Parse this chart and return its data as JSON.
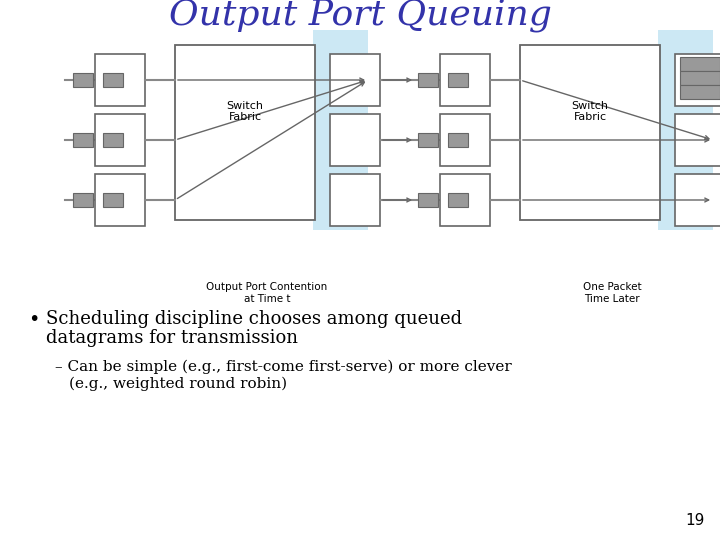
{
  "title": "Output Port Queuing",
  "title_color": "#3333aa",
  "title_fontsize": 26,
  "bg_color": "#ffffff",
  "bullet1_line1": "Scheduling discipline chooses among queued",
  "bullet1_line2": "datagrams for transmission",
  "sub_bullet_line1": "Can be simple (e.g., first-come first-serve) or more clever",
  "sub_bullet_line2": "(e.g., weighted round robin)",
  "caption_left": "Output Port Contention\nat Time t",
  "caption_right": "One Packet\nTime Later",
  "page_number": "19",
  "light_blue": "#cce8f4",
  "gray_packet": "#999999",
  "dark_gray": "#666666",
  "med_gray": "#888888",
  "box_edge": "#666666",
  "black": "#000000"
}
